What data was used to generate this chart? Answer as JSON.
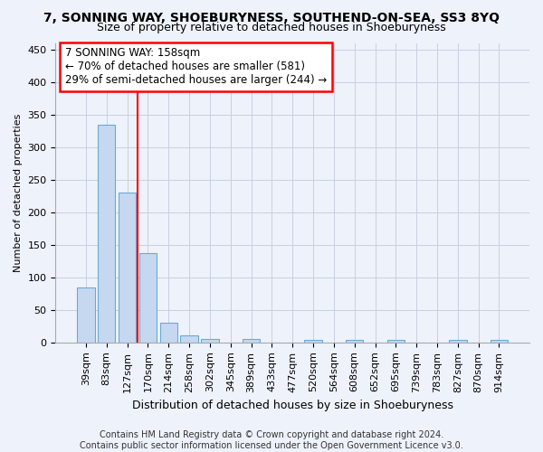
{
  "title": "7, SONNING WAY, SHOEBURYNESS, SOUTHEND-ON-SEA, SS3 8YQ",
  "subtitle": "Size of property relative to detached houses in Shoeburyness",
  "xlabel": "Distribution of detached houses by size in Shoeburyness",
  "ylabel": "Number of detached properties",
  "categories": [
    "39sqm",
    "83sqm",
    "127sqm",
    "170sqm",
    "214sqm",
    "258sqm",
    "302sqm",
    "345sqm",
    "389sqm",
    "433sqm",
    "477sqm",
    "520sqm",
    "564sqm",
    "608sqm",
    "652sqm",
    "695sqm",
    "739sqm",
    "783sqm",
    "827sqm",
    "870sqm",
    "914sqm"
  ],
  "values": [
    85,
    335,
    230,
    137,
    30,
    11,
    5,
    0,
    5,
    0,
    0,
    4,
    0,
    4,
    0,
    4,
    0,
    0,
    4,
    0,
    4
  ],
  "bar_color": "#c5d8f0",
  "bar_edge_color": "#6aaad4",
  "vline_x": 2.5,
  "vline_color": "red",
  "annotation_line1": "7 SONNING WAY: 158sqm",
  "annotation_line2": "← 70% of detached houses are smaller (581)",
  "annotation_line3": "29% of semi-detached houses are larger (244) →",
  "annotation_box_color": "white",
  "annotation_box_edge": "red",
  "ylim": [
    0,
    460
  ],
  "yticks": [
    0,
    50,
    100,
    150,
    200,
    250,
    300,
    350,
    400,
    450
  ],
  "footnote": "Contains HM Land Registry data © Crown copyright and database right 2024.\nContains public sector information licensed under the Open Government Licence v3.0.",
  "background_color": "#eef2fb",
  "grid_color": "#c8cfe0",
  "title_fontsize": 10,
  "subtitle_fontsize": 9,
  "xlabel_fontsize": 9,
  "ylabel_fontsize": 8,
  "tick_fontsize": 8,
  "footnote_fontsize": 7
}
